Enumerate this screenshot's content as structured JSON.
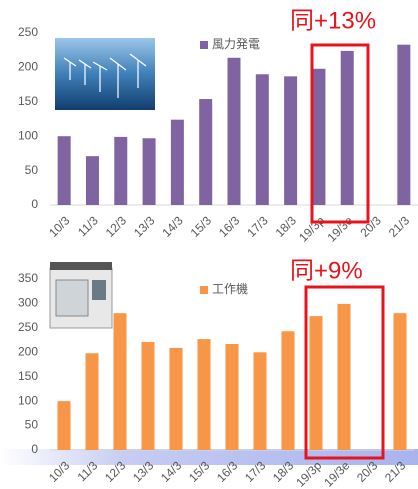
{
  "chart_data": [
    {
      "type": "bar",
      "legend": "風力発電",
      "color": "#8064a2",
      "annotation": "同+13%",
      "categories": [
        "10/3",
        "11/3",
        "12/3",
        "13/3",
        "14/3",
        "15/3",
        "16/3",
        "17/3",
        "18/3",
        "19/3p",
        "19/3e",
        "20/3",
        "21/3"
      ],
      "values": [
        100,
        71,
        99,
        97,
        124,
        154,
        214,
        190,
        187,
        198,
        224,
        null,
        233
      ],
      "ylim": [
        0,
        250
      ],
      "yticks": [
        0,
        50,
        100,
        150,
        200,
        250
      ],
      "grid": false
    },
    {
      "type": "bar",
      "legend": "工作機",
      "color": "#f79646",
      "annotation": "同+9%",
      "categories": [
        "10/3",
        "11/3",
        "12/3",
        "13/3",
        "14/3",
        "15/3",
        "16/3",
        "17/3",
        "18/3",
        "19/3p",
        "19/3e",
        "20/3",
        "21/3"
      ],
      "values": [
        100,
        198,
        280,
        221,
        209,
        227,
        217,
        200,
        243,
        274,
        299,
        null,
        280
      ],
      "ylim": [
        0,
        350
      ],
      "yticks": [
        0,
        50,
        100,
        150,
        200,
        250,
        300,
        350
      ],
      "grid": false
    }
  ]
}
